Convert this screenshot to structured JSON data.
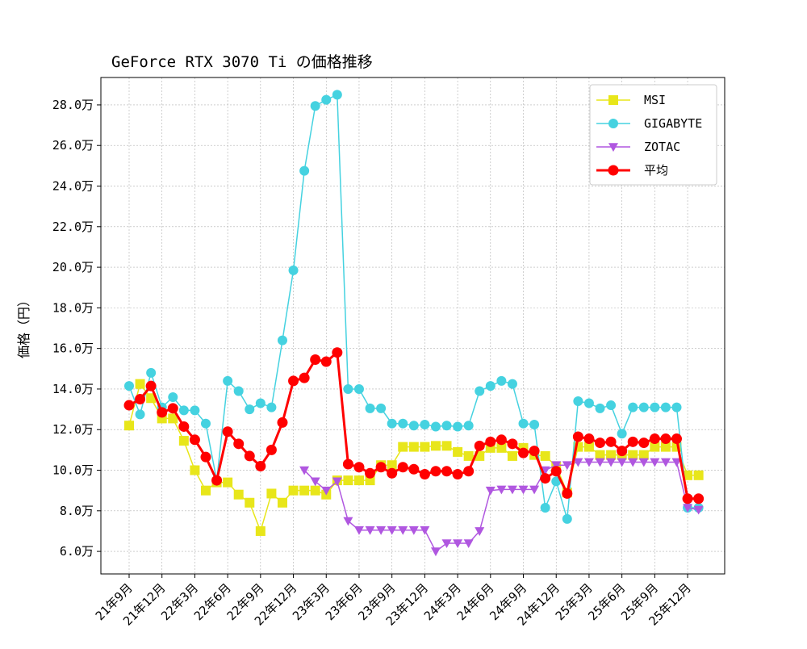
{
  "chart_data": {
    "type": "line",
    "title": "GeForce RTX 3070 Ti の価格推移",
    "xlabel": "",
    "ylabel": "価格（円）",
    "ylim": [
      4.89,
      29.35
    ],
    "yticks": [
      6,
      8,
      10,
      12,
      14,
      16,
      18,
      20,
      22,
      24,
      26,
      28
    ],
    "ytick_labels": [
      "6.0万",
      "8.0万",
      "10.0万",
      "12.0万",
      "14.0万",
      "16.0万",
      "18.0万",
      "20.0万",
      "22.0万",
      "24.0万",
      "26.0万",
      "28.0万"
    ],
    "xtick_labels": [
      "21年9月",
      "21年12月",
      "22年3月",
      "22年6月",
      "22年9月",
      "22年12月",
      "23年3月",
      "23年6月",
      "23年9月",
      "23年12月",
      "24年3月",
      "24年6月",
      "24年9月",
      "24年12月",
      "25年3月",
      "25年6月",
      "25年9月",
      "25年12月"
    ],
    "grid": true,
    "legend": "top-right",
    "x": [
      "21年9月",
      "21年10月",
      "21年11月",
      "21年12月",
      "22年1月",
      "22年2月",
      "22年3月",
      "22年4月",
      "22年5月",
      "22年6月",
      "22年7月",
      "22年8月",
      "22年9月",
      "22年10月",
      "22年11月",
      "22年12月",
      "23年1月",
      "23年2月",
      "23年3月",
      "23年4月",
      "23年5月",
      "23年6月",
      "23年7月",
      "23年8月",
      "23年9月",
      "23年10月",
      "23年11月",
      "23年12月",
      "24年1月",
      "24年2月",
      "24年3月",
      "24年4月",
      "24年5月",
      "24年6月",
      "24年7月",
      "24年8月",
      "24年9月",
      "24年10月",
      "24年11月",
      "24年12月",
      "25年1月",
      "25年2月",
      "25年3月",
      "25年4月",
      "25年5月",
      "25年6月",
      "25年7月",
      "25年8月",
      "25年9月",
      "25年10月",
      "25年11月",
      "25年12月",
      "26年1月"
    ],
    "series": [
      {
        "name": "MSI",
        "color": "#e8e61a",
        "marker": "square",
        "values": [
          12.2,
          14.25,
          13.55,
          12.55,
          12.55,
          11.45,
          10.0,
          9.0,
          9.4,
          9.4,
          8.8,
          8.4,
          7.0,
          8.85,
          8.4,
          9.0,
          9.0,
          9.0,
          8.8,
          9.5,
          9.5,
          9.5,
          9.5,
          10.25,
          10.25,
          11.15,
          11.15,
          11.15,
          11.2,
          11.2,
          10.9,
          10.7,
          10.7,
          11.1,
          11.1,
          10.7,
          11.1,
          10.75,
          10.7,
          10.2,
          8.9,
          11.15,
          11.15,
          10.75,
          10.75,
          10.75,
          10.75,
          10.75,
          11.15,
          11.15,
          11.15,
          9.75,
          9.75
        ]
      },
      {
        "name": "GIGABYTE",
        "color": "#45d2e0",
        "marker": "circle",
        "values": [
          14.15,
          12.75,
          14.8,
          13.1,
          13.6,
          12.95,
          12.95,
          12.3,
          9.5,
          14.4,
          13.9,
          13.0,
          13.3,
          13.1,
          16.4,
          19.85,
          24.75,
          27.95,
          28.25,
          28.5,
          14.0,
          14.0,
          13.05,
          13.05,
          12.3,
          12.3,
          12.2,
          12.25,
          12.15,
          12.2,
          12.15,
          12.2,
          13.9,
          14.15,
          14.4,
          14.25,
          12.3,
          12.25,
          8.15,
          9.45,
          7.6,
          13.4,
          13.3,
          13.05,
          13.2,
          11.8,
          13.1,
          13.1,
          13.1,
          13.1,
          13.1,
          8.15,
          8.15
        ]
      },
      {
        "name": "ZOTAC",
        "color": "#b057e0",
        "marker": "triangle-down",
        "values": [
          null,
          null,
          null,
          null,
          null,
          null,
          null,
          null,
          null,
          null,
          null,
          null,
          null,
          null,
          null,
          null,
          10.0,
          9.45,
          9.0,
          9.45,
          7.5,
          7.05,
          7.05,
          7.05,
          7.05,
          7.05,
          7.05,
          7.05,
          6.0,
          6.4,
          6.4,
          6.4,
          7.0,
          9.0,
          9.05,
          9.05,
          9.05,
          9.05,
          10.0,
          10.25,
          10.25,
          10.4,
          10.4,
          10.4,
          10.4,
          10.4,
          10.4,
          10.4,
          10.4,
          10.4,
          10.4,
          8.15,
          8.05
        ]
      },
      {
        "name": "平均",
        "color": "#ff0000",
        "marker": "circle",
        "values": [
          13.2,
          13.5,
          14.15,
          12.85,
          13.05,
          12.15,
          11.5,
          10.65,
          9.5,
          11.9,
          11.3,
          10.7,
          10.2,
          11.0,
          12.35,
          14.4,
          14.55,
          15.45,
          15.35,
          15.8,
          10.3,
          10.15,
          9.85,
          10.15,
          9.85,
          10.15,
          10.05,
          9.8,
          9.95,
          9.95,
          9.8,
          9.95,
          11.2,
          11.4,
          11.5,
          11.3,
          10.85,
          10.95,
          9.6,
          9.95,
          8.85,
          11.65,
          11.55,
          11.35,
          11.4,
          10.95,
          11.4,
          11.35,
          11.55,
          11.55,
          11.55,
          8.6,
          8.6
        ]
      }
    ]
  }
}
